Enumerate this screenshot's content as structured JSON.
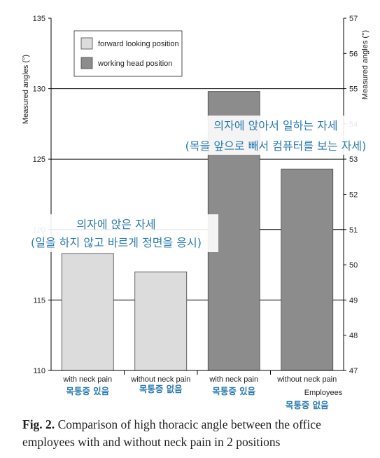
{
  "chart_data": {
    "type": "bar",
    "title": "",
    "ylabel_left": "Measured angles (°)",
    "ylabel_right": "Measured angles (°)",
    "xlabel": "Employees",
    "ylim_left": [
      110,
      135
    ],
    "ylim_right": [
      47,
      57
    ],
    "left_ticks": [
      110,
      115,
      120,
      125,
      130,
      135
    ],
    "right_ticks": [
      47,
      48,
      49,
      50,
      51,
      52,
      53,
      54,
      55,
      56,
      57
    ],
    "gridlines": [
      115,
      120,
      125,
      130
    ],
    "categories": [
      {
        "en": "with neck pain",
        "ko": "목통증 있음"
      },
      {
        "en": "without neck pain",
        "ko": "목통증 없음"
      },
      {
        "en": "with neck pain",
        "ko": "목통증 있음"
      },
      {
        "en": "without neck pain",
        "ko": "목통증 없음"
      }
    ],
    "bars": [
      {
        "value": 118.3,
        "series": 0
      },
      {
        "value": 117.0,
        "series": 0
      },
      {
        "value": 129.8,
        "series": 1
      },
      {
        "value": 124.3,
        "series": 1
      }
    ],
    "series": [
      {
        "name": "forward looking position",
        "color": "#dcdcdc"
      },
      {
        "name": "working head position",
        "color": "#8c8c8c"
      }
    ],
    "legend_position": "top-left",
    "annotations": [
      {
        "lines": [
          "의자에 앉은 자세",
          "(일을 하지 않고 바르게 정면을 응시)"
        ],
        "color": "#2b7bb0"
      },
      {
        "lines": [
          "의자에 앉아서 일하는 자세",
          "(목을 앞으로 빼서 컴퓨터를 보는 자세)"
        ],
        "color": "#2b7bb0"
      }
    ]
  },
  "caption": {
    "label": "Fig. 2.",
    "text": " Comparison of high thoracic angle between the office employees with and without neck pain in 2 positions"
  }
}
